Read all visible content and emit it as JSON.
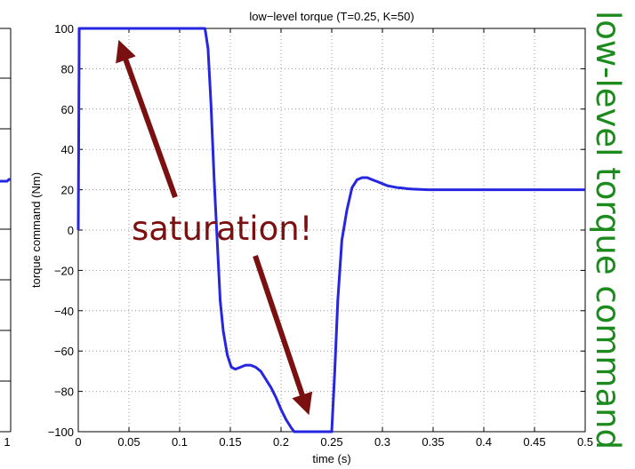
{
  "chart_data": {
    "type": "line",
    "title": "low−level torque (T=0.25, K=50)",
    "xlabel": "time (s)",
    "ylabel": "torque command (Nm)",
    "xlim": [
      0,
      0.5
    ],
    "ylim": [
      -100,
      100
    ],
    "xticks": [
      0,
      0.05,
      0.1,
      0.15,
      0.2,
      0.25,
      0.3,
      0.35,
      0.4,
      0.45,
      0.5
    ],
    "xtick_labels": [
      "0",
      "0.05",
      "0.1",
      "0.15",
      "0.2",
      "0.25",
      "0.3",
      "0.35",
      "0.4",
      "0.45",
      "0.5"
    ],
    "yticks": [
      -100,
      -80,
      -60,
      -40,
      -20,
      0,
      20,
      40,
      60,
      80,
      100
    ],
    "ytick_labels": [
      "−100",
      "−80",
      "−60",
      "−40",
      "−20",
      "0",
      "20",
      "40",
      "60",
      "80",
      "100"
    ],
    "grid": true,
    "line_color": "#2626e0",
    "series": [
      {
        "x": [
          0,
          0.001,
          0.125,
          0.128,
          0.131,
          0.134,
          0.137,
          0.14,
          0.143,
          0.147,
          0.151,
          0.155,
          0.16,
          0.165,
          0.17,
          0.175,
          0.18,
          0.185,
          0.19,
          0.195,
          0.2,
          0.205,
          0.21,
          0.213,
          0.215,
          0.24,
          0.25,
          0.253,
          0.256,
          0.26,
          0.265,
          0.27,
          0.275,
          0.28,
          0.285,
          0.29,
          0.295,
          0.3,
          0.305,
          0.31,
          0.315,
          0.32,
          0.325,
          0.33,
          0.335,
          0.34,
          0.345,
          0.35,
          0.4,
          0.45,
          0.5
        ],
        "y": [
          0,
          100,
          100,
          90,
          62,
          25,
          -5,
          -35,
          -50,
          -62,
          -68,
          -69,
          -68,
          -67,
          -67,
          -68,
          -70,
          -74,
          -78,
          -83,
          -89,
          -94,
          -98,
          -100,
          -100,
          -100,
          -100,
          -70,
          -35,
          -5,
          10,
          21,
          25,
          26,
          26,
          25,
          24,
          23,
          22,
          21.5,
          21,
          20.8,
          20.5,
          20.3,
          20.2,
          20.1,
          20,
          20,
          20,
          20,
          20
        ]
      }
    ],
    "annotations": [
      {
        "text": "saturation!",
        "color": "#7a1010"
      }
    ],
    "side_label": {
      "text": "low-level torque command",
      "color": "#1c8a1c"
    },
    "left_stub_labels": [
      "1"
    ]
  }
}
